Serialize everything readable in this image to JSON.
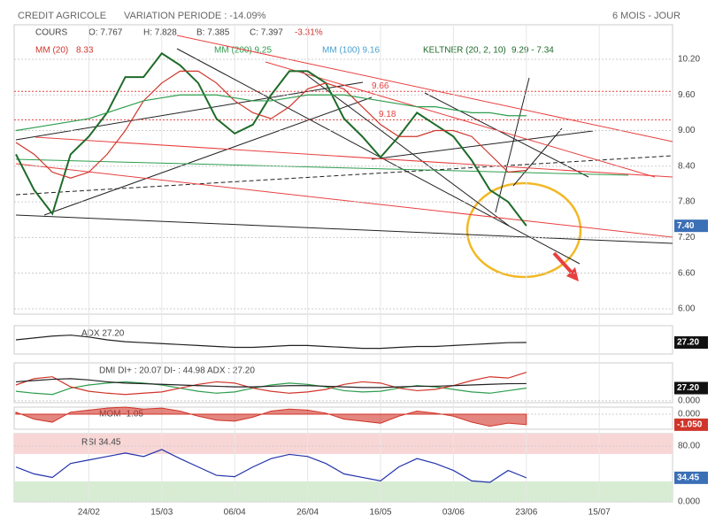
{
  "header": {
    "title": "CREDIT AGRICOLE",
    "variation": "VARIATION PERIODE : -14.09%",
    "period": "6 MOIS - JOUR"
  },
  "legend": {
    "cours": "COURS",
    "open": "O: 7.767",
    "high": "H: 7.828",
    "low": "B: 7.385",
    "close": "C: 7.397",
    "change": "-3.31%",
    "mm20": "MM (20)",
    "mm20_value": "8.33",
    "mm200": "MM (200) 9.25",
    "mm100": "MM (100) 9.16",
    "keltner": "KELTNER (20, 2, 10)",
    "keltner_value": "9.29 - 7.34"
  },
  "chart_data": [
    {
      "type": "line",
      "categories": [
        null,
        null,
        null,
        null,
        "24/02",
        null,
        null,
        null,
        "15/03",
        null,
        null,
        null,
        "06/04",
        null,
        null,
        null,
        "26/04",
        null,
        null,
        null,
        "16/05",
        null,
        null,
        null,
        "03/06",
        null,
        null,
        null,
        "23/06",
        null,
        null,
        null,
        "15/07",
        null,
        null,
        null
      ],
      "series": [
        {
          "name": "COURS",
          "color": "#1f6b2a",
          "values": [
            8.6,
            8.0,
            7.6,
            8.6,
            8.9,
            9.3,
            9.9,
            9.9,
            10.3,
            10.1,
            9.8,
            9.2,
            8.95,
            9.1,
            9.6,
            10.0,
            10.0,
            9.8,
            9.2,
            8.9,
            8.55,
            8.9,
            9.3,
            9.1,
            8.9,
            8.5,
            8.0,
            7.8,
            7.397,
            null,
            null,
            null,
            null,
            null,
            null,
            null
          ]
        },
        {
          "name": "MM (20)",
          "color": "#d0352a",
          "values": [
            8.8,
            8.6,
            8.3,
            8.2,
            8.3,
            8.6,
            9.0,
            9.5,
            9.8,
            10.0,
            10.0,
            9.8,
            9.5,
            9.3,
            9.2,
            9.4,
            9.7,
            9.8,
            9.7,
            9.4,
            9.1,
            8.9,
            8.9,
            9.0,
            9.0,
            8.9,
            8.6,
            8.3,
            8.33,
            null,
            null,
            null,
            null,
            null,
            null,
            null
          ]
        },
        {
          "name": "MM (200)",
          "color": "#2e9e4e",
          "values": [
            9.0,
            9.05,
            9.1,
            9.15,
            9.2,
            9.3,
            9.4,
            9.5,
            9.55,
            9.6,
            9.6,
            9.6,
            9.55,
            9.5,
            9.5,
            9.55,
            9.6,
            9.6,
            9.6,
            9.55,
            9.5,
            9.45,
            9.4,
            9.4,
            9.35,
            9.3,
            9.3,
            9.25,
            9.25,
            null,
            null,
            null,
            null,
            null,
            null,
            null
          ]
        }
      ],
      "ylim": [
        5.91,
        10.78
      ],
      "yticks": [
        {
          "value": 10.2,
          "label": "10.20"
        },
        {
          "value": 9.6,
          "label": "9.60"
        },
        {
          "value": 9.0,
          "label": "9.00"
        },
        {
          "value": 8.4,
          "label": "8.40"
        },
        {
          "value": 7.8,
          "label": "7.80"
        },
        {
          "value": 7.2,
          "label": "7.20"
        },
        {
          "value": 6.6,
          "label": "6.60"
        },
        {
          "value": 6.0,
          "label": "6.00"
        }
      ],
      "levels": [
        9.66,
        9.18
      ],
      "badge": "7.40",
      "grid": true
    },
    {
      "type": "line",
      "title": "ADX 27.20",
      "series": [
        {
          "name": "ADX",
          "color": "#222222",
          "values": [
            30,
            32,
            34,
            35,
            33,
            30,
            28,
            27,
            26,
            25,
            24,
            23,
            22,
            22,
            23,
            24,
            24,
            23,
            22,
            21,
            21,
            22,
            23,
            23,
            24,
            25,
            26,
            27,
            27.2,
            null,
            null,
            null,
            null,
            null,
            null,
            null
          ]
        }
      ],
      "ylim": [
        15,
        45
      ],
      "yticks": [],
      "badge": "27.20"
    },
    {
      "type": "line",
      "title": "DMI DI+ : 20.07 DI- : 44.98 ADX : 27.20",
      "series": [
        {
          "name": "DI+",
          "color": "#2e9e4e",
          "values": [
            15,
            12,
            10,
            20,
            25,
            28,
            30,
            28,
            25,
            20,
            15,
            12,
            14,
            20,
            25,
            28,
            26,
            22,
            16,
            14,
            15,
            20,
            24,
            22,
            18,
            14,
            12,
            16,
            20.07,
            null,
            null,
            null,
            null,
            null,
            null,
            null
          ]
        },
        {
          "name": "DI-",
          "color": "#d0352a",
          "values": [
            25,
            35,
            38,
            22,
            15,
            12,
            10,
            12,
            14,
            20,
            26,
            30,
            28,
            20,
            15,
            12,
            14,
            18,
            26,
            30,
            28,
            20,
            16,
            18,
            24,
            32,
            38,
            36,
            44.98,
            null,
            null,
            null,
            null,
            null,
            null,
            null
          ]
        },
        {
          "name": "ADX",
          "color": "#222222",
          "values": [
            30,
            32,
            34,
            35,
            33,
            30,
            28,
            27,
            26,
            25,
            24,
            23,
            22,
            22,
            23,
            24,
            24,
            23,
            22,
            21,
            21,
            22,
            23,
            23,
            24,
            25,
            26,
            27,
            27.2,
            null,
            null,
            null,
            null,
            null,
            null,
            null
          ]
        }
      ],
      "ylim": [
        -3,
        60
      ],
      "yticks": [
        {
          "value": 0,
          "label": "0.000"
        }
      ],
      "badge": "27.20"
    },
    {
      "type": "area",
      "title": "MOM -1.05",
      "series": [
        {
          "name": "MOM",
          "color": "#d0352a",
          "values": [
            0.2,
            -0.5,
            -0.8,
            0.2,
            0.4,
            0.6,
            0.7,
            0.5,
            0.6,
            0.3,
            -0.2,
            -0.6,
            -0.7,
            -0.3,
            0.3,
            0.5,
            0.4,
            0.1,
            -0.5,
            -0.7,
            -0.9,
            -0.2,
            0.3,
            0.1,
            -0.2,
            -0.8,
            -1.2,
            -0.9,
            -1.05,
            null,
            null,
            null,
            null,
            null,
            null,
            null
          ]
        }
      ],
      "ylim": [
        -1.5,
        0.7
      ],
      "yticks": [
        {
          "value": 0,
          "label": "0.000"
        }
      ],
      "badge": "-1.050"
    },
    {
      "type": "line",
      "title": "RSI 34.45",
      "series": [
        {
          "name": "RSI",
          "color": "#2233aa",
          "values": [
            50,
            40,
            35,
            55,
            60,
            65,
            70,
            65,
            75,
            62,
            50,
            38,
            36,
            50,
            62,
            68,
            65,
            55,
            40,
            35,
            30,
            50,
            62,
            55,
            45,
            30,
            28,
            45,
            34.45,
            null,
            null,
            null,
            null,
            null,
            null,
            null
          ]
        }
      ],
      "ylim": [
        0,
        97.8
      ],
      "yticks": [
        {
          "value": 80,
          "label": "80.00"
        },
        {
          "value": 0,
          "label": "0.000"
        }
      ],
      "badge": "34.45"
    }
  ]
}
